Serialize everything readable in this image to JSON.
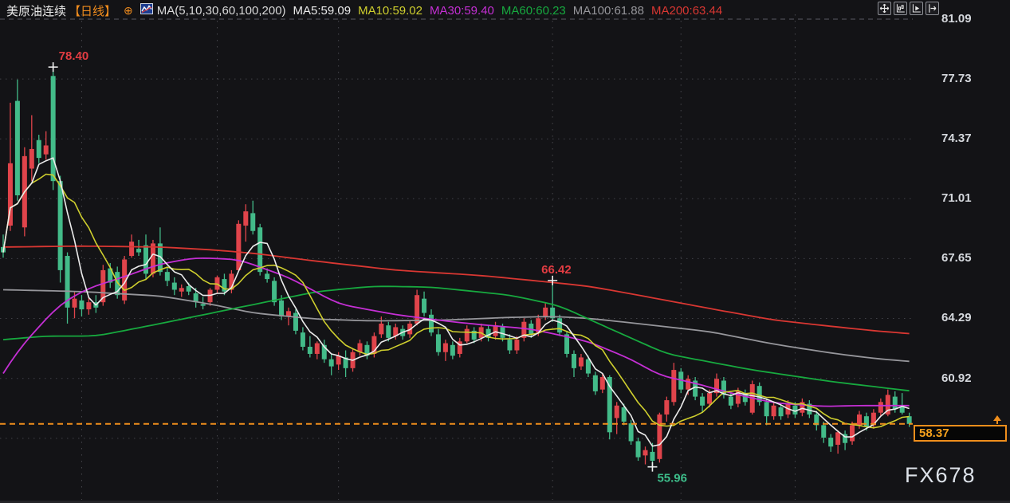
{
  "header": {
    "symbol": "美原油连续",
    "period": "【日线】",
    "add_icon": "⊕",
    "ma_config": "MA(5,10,30,60,100,200)",
    "ma_values": [
      {
        "label": "MA5:59.09",
        "color": "#ebebeb"
      },
      {
        "label": "MA10:59.02",
        "color": "#cfcf2e"
      },
      {
        "label": "MA30:59.40",
        "color": "#c42fd4"
      },
      {
        "label": "MA60:60.23",
        "color": "#17a93f"
      },
      {
        "label": "MA100:61.88",
        "color": "#96969b"
      },
      {
        "label": "MA200:63.44",
        "color": "#d93732"
      }
    ]
  },
  "toolbar": {
    "buttons": [
      {
        "name": "pan-tool"
      },
      {
        "name": "axis-scale-tool"
      },
      {
        "name": "playback-tool"
      },
      {
        "name": "jump-to-latest-tool"
      }
    ]
  },
  "axis": {
    "ticks": [
      {
        "label": "81.09",
        "price": 81.09
      },
      {
        "label": "77.73",
        "price": 77.73
      },
      {
        "label": "74.37",
        "price": 74.37
      },
      {
        "label": "71.01",
        "price": 71.01
      },
      {
        "label": "67.65",
        "price": 67.65
      },
      {
        "label": "64.29",
        "price": 64.29
      },
      {
        "label": "60.92",
        "price": 60.92
      }
    ],
    "unlabeled_gridline_price": 57.56,
    "left_edge_fragment_prices": [
      77.73,
      74.37,
      64.29,
      60.92,
      57.56
    ]
  },
  "price_tag": {
    "label": "58.37",
    "price": 58.37,
    "color": "#f5a01d"
  },
  "watermark": "FX678",
  "chart_data": {
    "type": "candlestick",
    "title": "美原油连续 日线",
    "y_ticks": [
      81.09,
      77.73,
      74.37,
      71.01,
      67.65,
      64.29,
      60.92
    ],
    "grid": "dotted",
    "current_price": 58.37,
    "up_color": "#e0444b",
    "down_color": "#43bb89",
    "price_line": {
      "price": 58.37,
      "style": "dashed",
      "color": "#ef8e1c"
    },
    "vertical_gridline_indices": [
      11,
      30,
      47,
      77,
      95,
      111
    ],
    "marked_points": [
      {
        "index": 7,
        "price": 78.4,
        "label": "78.40",
        "color": "#e23c42",
        "side": "above"
      },
      {
        "index": 77,
        "price": 66.42,
        "label": "66.42",
        "color": "#e23c42",
        "side": "above"
      },
      {
        "index": 91,
        "price": 55.96,
        "label": "55.96",
        "color": "#3dbd8a",
        "side": "below"
      }
    ],
    "candles": [
      [
        68.3,
        69.0,
        67.7,
        68.0
      ],
      [
        69.5,
        76.4,
        69.2,
        73.0
      ],
      [
        76.5,
        77.7,
        70.9,
        71.2
      ],
      [
        69.4,
        73.9,
        68.9,
        73.4
      ],
      [
        72.7,
        75.7,
        72.0,
        73.8
      ],
      [
        74.3,
        74.6,
        73.0,
        73.3
      ],
      [
        73.5,
        74.8,
        73.2,
        74.0
      ],
      [
        77.9,
        78.4,
        71.5,
        72.0
      ],
      [
        72.0,
        72.3,
        66.3,
        67.0
      ],
      [
        67.8,
        68.0,
        64.0,
        64.9
      ],
      [
        64.9,
        65.8,
        64.3,
        65.4
      ],
      [
        65.3,
        65.6,
        64.4,
        64.8
      ],
      [
        64.8,
        65.5,
        64.5,
        65.2
      ],
      [
        65.2,
        65.6,
        64.6,
        64.9
      ],
      [
        65.2,
        67.3,
        65.0,
        67.0
      ],
      [
        67.1,
        67.4,
        66.0,
        66.3
      ],
      [
        66.9,
        67.2,
        65.4,
        65.6
      ],
      [
        65.3,
        67.8,
        65.1,
        67.6
      ],
      [
        67.8,
        69.0,
        67.7,
        68.6
      ],
      [
        68.2,
        68.7,
        67.8,
        68.0
      ],
      [
        68.4,
        69.0,
        66.5,
        66.8
      ],
      [
        66.8,
        68.7,
        66.6,
        68.5
      ],
      [
        68.5,
        69.4,
        66.7,
        66.9
      ],
      [
        66.9,
        67.2,
        66.1,
        66.4
      ],
      [
        66.3,
        66.6,
        65.6,
        65.9
      ],
      [
        65.8,
        66.2,
        65.5,
        66.0
      ],
      [
        66.1,
        66.3,
        65.6,
        65.8
      ],
      [
        65.7,
        66.0,
        64.9,
        65.2
      ],
      [
        65.1,
        65.5,
        64.8,
        65.0
      ],
      [
        65.2,
        66.0,
        65.0,
        65.9
      ],
      [
        65.9,
        66.7,
        65.7,
        66.6
      ],
      [
        66.5,
        66.8,
        65.6,
        65.8
      ],
      [
        65.9,
        67.0,
        65.7,
        66.8
      ],
      [
        67.0,
        69.8,
        66.9,
        69.6
      ],
      [
        69.5,
        70.7,
        68.6,
        70.3
      ],
      [
        70.2,
        70.9,
        69.0,
        69.2
      ],
      [
        69.4,
        69.6,
        66.7,
        66.9
      ],
      [
        66.8,
        67.1,
        66.3,
        66.5
      ],
      [
        66.4,
        66.6,
        65.0,
        65.2
      ],
      [
        65.3,
        65.6,
        64.2,
        64.4
      ],
      [
        64.4,
        64.9,
        63.9,
        64.7
      ],
      [
        64.6,
        64.8,
        63.4,
        63.6
      ],
      [
        63.5,
        63.8,
        62.5,
        62.7
      ],
      [
        62.7,
        63.3,
        62.1,
        62.3
      ],
      [
        62.3,
        63.0,
        62.0,
        62.9
      ],
      [
        62.8,
        63.1,
        61.8,
        62.0
      ],
      [
        62.0,
        62.3,
        61.1,
        61.6
      ],
      [
        61.7,
        62.4,
        61.4,
        62.2
      ],
      [
        62.1,
        62.5,
        61.0,
        61.5
      ],
      [
        61.5,
        62.6,
        61.3,
        62.4
      ],
      [
        62.4,
        63.1,
        62.2,
        62.9
      ],
      [
        62.8,
        63.0,
        62.0,
        62.2
      ],
      [
        62.3,
        63.5,
        62.1,
        63.3
      ],
      [
        63.4,
        64.4,
        63.2,
        64.0
      ],
      [
        63.9,
        64.1,
        63.0,
        63.2
      ],
      [
        63.3,
        64.0,
        63.1,
        63.8
      ],
      [
        63.7,
        63.9,
        63.1,
        63.3
      ],
      [
        63.4,
        64.2,
        63.2,
        64.0
      ],
      [
        64.0,
        65.9,
        63.9,
        65.6
      ],
      [
        65.4,
        65.8,
        64.4,
        64.6
      ],
      [
        64.5,
        64.8,
        63.3,
        63.5
      ],
      [
        63.4,
        63.7,
        62.2,
        62.4
      ],
      [
        62.4,
        63.1,
        61.9,
        62.9
      ],
      [
        62.8,
        63.0,
        62.0,
        62.2
      ],
      [
        62.3,
        63.2,
        62.1,
        63.0
      ],
      [
        63.0,
        63.9,
        62.9,
        63.7
      ],
      [
        63.6,
        63.8,
        62.9,
        63.1
      ],
      [
        63.2,
        64.0,
        63.0,
        63.8
      ],
      [
        63.7,
        63.9,
        63.0,
        63.2
      ],
      [
        63.3,
        64.1,
        63.1,
        63.9
      ],
      [
        63.8,
        64.0,
        63.0,
        63.2
      ],
      [
        63.1,
        63.4,
        62.3,
        62.5
      ],
      [
        62.5,
        63.3,
        62.3,
        63.1
      ],
      [
        63.2,
        64.3,
        63.0,
        64.1
      ],
      [
        64.0,
        64.2,
        63.2,
        63.4
      ],
      [
        63.5,
        64.5,
        63.3,
        64.3
      ],
      [
        64.4,
        65.2,
        64.2,
        64.9
      ],
      [
        64.9,
        66.42,
        64.1,
        64.3
      ],
      [
        64.3,
        64.5,
        63.3,
        63.5
      ],
      [
        63.4,
        63.6,
        62.1,
        62.3
      ],
      [
        62.3,
        62.5,
        61.0,
        61.5
      ],
      [
        61.6,
        62.3,
        61.4,
        62.1
      ],
      [
        62.0,
        62.2,
        61.0,
        61.2
      ],
      [
        61.1,
        61.3,
        60.0,
        60.2
      ],
      [
        60.3,
        61.2,
        60.1,
        61.0
      ],
      [
        61.0,
        61.1,
        57.5,
        57.9
      ],
      [
        58.7,
        59.6,
        57.8,
        59.4
      ],
      [
        59.3,
        59.5,
        58.3,
        58.5
      ],
      [
        58.4,
        58.6,
        57.2,
        57.4
      ],
      [
        57.4,
        57.6,
        56.3,
        56.5
      ],
      [
        56.6,
        57.1,
        56.1,
        56.9
      ],
      [
        56.8,
        57.3,
        55.96,
        56.3
      ],
      [
        56.4,
        59.0,
        56.2,
        58.9
      ],
      [
        58.9,
        59.9,
        58.5,
        59.7
      ],
      [
        59.6,
        61.8,
        59.4,
        61.4
      ],
      [
        61.3,
        61.5,
        60.1,
        60.3
      ],
      [
        60.3,
        61.1,
        60.0,
        60.9
      ],
      [
        60.8,
        61.0,
        59.7,
        59.9
      ],
      [
        59.9,
        60.1,
        59.0,
        59.4
      ],
      [
        59.5,
        60.3,
        59.3,
        60.1
      ],
      [
        60.1,
        61.2,
        59.9,
        60.9
      ],
      [
        60.8,
        61.0,
        59.8,
        60.0
      ],
      [
        59.9,
        60.1,
        59.2,
        59.4
      ],
      [
        59.5,
        60.4,
        59.3,
        60.2
      ],
      [
        60.1,
        60.3,
        59.4,
        59.6
      ],
      [
        59.0,
        60.8,
        58.9,
        60.6
      ],
      [
        60.5,
        60.7,
        59.4,
        59.6
      ],
      [
        59.6,
        59.8,
        58.3,
        58.8
      ],
      [
        58.8,
        59.6,
        58.6,
        59.4
      ],
      [
        59.3,
        59.5,
        58.6,
        58.8
      ],
      [
        58.9,
        59.7,
        58.7,
        59.5
      ],
      [
        59.4,
        59.6,
        58.7,
        58.9
      ],
      [
        59.0,
        59.8,
        58.8,
        59.6
      ],
      [
        59.5,
        59.7,
        58.7,
        58.9
      ],
      [
        58.9,
        59.1,
        58.0,
        58.3
      ],
      [
        58.3,
        58.5,
        57.3,
        57.6
      ],
      [
        57.6,
        57.8,
        56.8,
        57.1
      ],
      [
        57.2,
        58.0,
        56.7,
        57.9
      ],
      [
        57.8,
        58.0,
        56.9,
        57.3
      ],
      [
        57.4,
        58.5,
        57.2,
        58.3
      ],
      [
        58.3,
        59.1,
        58.1,
        58.9
      ],
      [
        58.8,
        59.0,
        58.0,
        58.2
      ],
      [
        58.3,
        59.2,
        58.1,
        59.0
      ],
      [
        59.0,
        59.8,
        58.8,
        59.6
      ],
      [
        58.9,
        60.3,
        58.8,
        60.0
      ],
      [
        59.9,
        60.2,
        59.0,
        59.2
      ],
      [
        59.3,
        60.1,
        58.9,
        59.0
      ],
      [
        58.8,
        59.0,
        58.2,
        58.37
      ]
    ],
    "moving_averages": {
      "ma5": {
        "period": 5,
        "last": 59.09,
        "color": "#ebebeb"
      },
      "ma10": {
        "period": 10,
        "last": 59.02,
        "color": "#cfcf2e"
      },
      "ma30": {
        "period": 30,
        "last": 59.4,
        "color": "#c42fd4",
        "anchors": [
          [
            0,
            61.2
          ],
          [
            1,
            61.9
          ],
          [
            4,
            63.4
          ],
          [
            8,
            65.1
          ],
          [
            12,
            66.0
          ],
          [
            16,
            66.5
          ],
          [
            22,
            67.35
          ],
          [
            27,
            67.7
          ],
          [
            33,
            67.6
          ],
          [
            40,
            66.6
          ],
          [
            47,
            65.1
          ],
          [
            55,
            64.5
          ],
          [
            63,
            64.1
          ],
          [
            68,
            63.9
          ],
          [
            74,
            63.7
          ],
          [
            82,
            63.0
          ],
          [
            88,
            62.0
          ],
          [
            92,
            61.1
          ],
          [
            97,
            60.65
          ],
          [
            102,
            60.1
          ],
          [
            108,
            59.55
          ],
          [
            115,
            59.35
          ],
          [
            120,
            59.4
          ],
          [
            127,
            59.4
          ]
        ]
      },
      "ma60": {
        "period": 60,
        "last": 60.23,
        "color": "#17a93f",
        "anchors": [
          [
            0,
            63.1
          ],
          [
            6,
            63.3
          ],
          [
            13,
            63.3
          ],
          [
            22,
            64.0
          ],
          [
            33,
            64.9
          ],
          [
            44,
            65.8
          ],
          [
            52,
            66.1
          ],
          [
            60,
            66.05
          ],
          [
            71,
            65.6
          ],
          [
            78,
            65.0
          ],
          [
            84,
            63.9
          ],
          [
            93,
            62.3
          ],
          [
            105,
            61.4
          ],
          [
            116,
            60.75
          ],
          [
            127,
            60.23
          ]
        ]
      },
      "ma100": {
        "period": 100,
        "last": 61.88,
        "color": "#96969b",
        "anchors": [
          [
            0,
            65.9
          ],
          [
            11,
            65.8
          ],
          [
            22,
            65.55
          ],
          [
            29,
            65.1
          ],
          [
            35,
            64.6
          ],
          [
            44,
            64.25
          ],
          [
            52,
            64.15
          ],
          [
            62,
            64.2
          ],
          [
            71,
            64.35
          ],
          [
            77,
            64.4
          ],
          [
            82,
            64.3
          ],
          [
            89,
            64.0
          ],
          [
            99,
            63.55
          ],
          [
            108,
            62.85
          ],
          [
            116,
            62.35
          ],
          [
            122,
            62.05
          ],
          [
            127,
            61.88
          ]
        ]
      },
      "ma200": {
        "period": 200,
        "last": 63.44,
        "color": "#d93732",
        "anchors": [
          [
            0,
            68.3
          ],
          [
            11,
            68.35
          ],
          [
            22,
            68.3
          ],
          [
            29,
            68.15
          ],
          [
            35,
            67.95
          ],
          [
            44,
            67.5
          ],
          [
            55,
            67.0
          ],
          [
            67,
            66.7
          ],
          [
            76,
            66.35
          ],
          [
            82,
            66.1
          ],
          [
            89,
            65.6
          ],
          [
            99,
            64.85
          ],
          [
            108,
            64.2
          ],
          [
            116,
            63.85
          ],
          [
            122,
            63.6
          ],
          [
            127,
            63.44
          ]
        ]
      }
    }
  }
}
